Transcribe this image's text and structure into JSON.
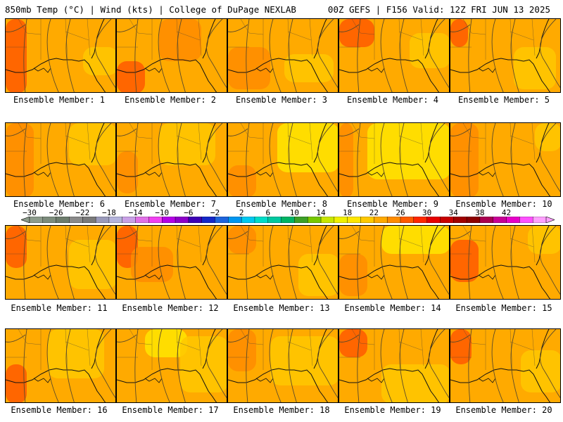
{
  "header": {
    "left": "850mb Temp (°C) | Wind (kts) | College of DuPage NEXLAB",
    "right": "00Z GEFS | F156 Valid: 12Z FRI JUN 13 2025"
  },
  "members": [
    {
      "label": "Ensemble Member: 1"
    },
    {
      "label": "Ensemble Member: 2"
    },
    {
      "label": "Ensemble Member: 3"
    },
    {
      "label": "Ensemble Member: 4"
    },
    {
      "label": "Ensemble Member: 5"
    },
    {
      "label": "Ensemble Member: 6"
    },
    {
      "label": "Ensemble Member: 7"
    },
    {
      "label": "Ensemble Member: 8"
    },
    {
      "label": "Ensemble Member: 9"
    },
    {
      "label": "Ensemble Member: 10"
    },
    {
      "label": "Ensemble Member: 11"
    },
    {
      "label": "Ensemble Member: 12"
    },
    {
      "label": "Ensemble Member: 13"
    },
    {
      "label": "Ensemble Member: 14"
    },
    {
      "label": "Ensemble Member: 15"
    },
    {
      "label": "Ensemble Member: 16"
    },
    {
      "label": "Ensemble Member: 17"
    },
    {
      "label": "Ensemble Member: 18"
    },
    {
      "label": "Ensemble Member: 19"
    },
    {
      "label": "Ensemble Member: 20"
    }
  ],
  "colorbar": {
    "labels": [
      "−30",
      "−26",
      "−22",
      "−18",
      "−14",
      "−10",
      "−6",
      "−2",
      "2",
      "6",
      "10",
      "14",
      "18",
      "22",
      "26",
      "30",
      "34",
      "38",
      "42"
    ],
    "colors": [
      "#8c9c8c",
      "#7c8c7c",
      "#6c7c6c",
      "#8a8a8a",
      "#7a7a7a",
      "#9a9aba",
      "#b4b4dc",
      "#c8a0e6",
      "#e070e6",
      "#f040f0",
      "#b400e6",
      "#8c00c8",
      "#3c00b4",
      "#1428c8",
      "#1e64dc",
      "#0096f0",
      "#00c8f0",
      "#00dcc8",
      "#00c8a0",
      "#00b464",
      "#3ca028",
      "#78c800",
      "#c8e600",
      "#f0f000",
      "#ffe600",
      "#ffc800",
      "#ffaa00",
      "#ff8c00",
      "#ff5a00",
      "#ff2800",
      "#e60000",
      "#c80000",
      "#a00000",
      "#8c0000",
      "#aa0050",
      "#c80096",
      "#e600c8",
      "#ff50ff",
      "#ffa0ff"
    ]
  }
}
